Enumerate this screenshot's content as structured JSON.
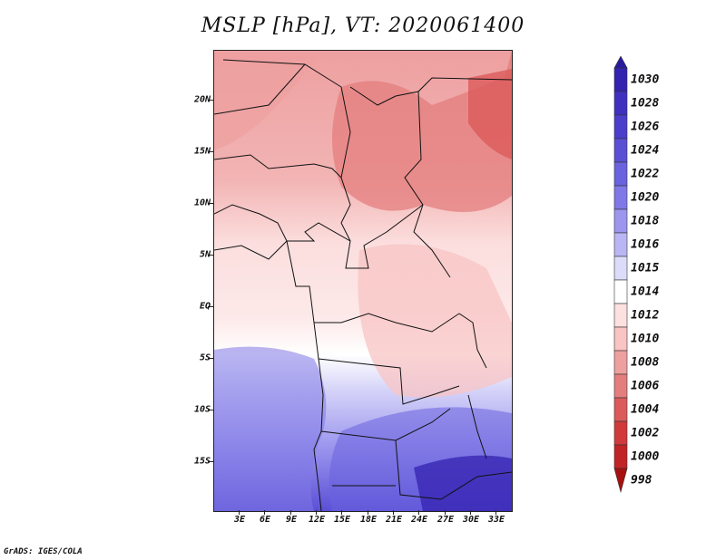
{
  "title": "MSLP [hPa], VT: 2020061400",
  "footer": "GrADS: IGES/COLA",
  "lat_labels": [
    "20N",
    "15N",
    "10N",
    "5N",
    "EQ",
    "5S",
    "10S",
    "15S"
  ],
  "lon_labels": [
    "3E",
    "6E",
    "9E",
    "12E",
    "15E",
    "18E",
    "21E",
    "24E",
    "27E",
    "30E",
    "33E"
  ],
  "colorbar": {
    "labels": [
      "1030",
      "1028",
      "1026",
      "1024",
      "1022",
      "1020",
      "1018",
      "1016",
      "1015",
      "1014",
      "1012",
      "1010",
      "1008",
      "1006",
      "1004",
      "1002",
      "1000",
      "998"
    ],
    "colors": [
      "#2a1aa0",
      "#3422b0",
      "#4030c0",
      "#4c3ecc",
      "#5a50d6",
      "#6a62de",
      "#8078e6",
      "#9c96ee",
      "#bab6f4",
      "#dcdcfa",
      "#ffffff",
      "#fde0e0",
      "#f8c4c4",
      "#eea0a0",
      "#e47e7e",
      "#dc5a5a",
      "#d03a3a",
      "#c02424",
      "#a81010"
    ]
  }
}
